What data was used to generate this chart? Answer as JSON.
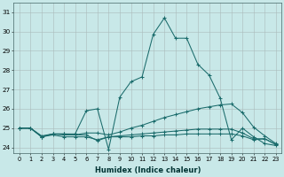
{
  "xlabel": "Humidex (Indice chaleur)",
  "bg_color": "#c8e8e8",
  "line_color": "#1a6b6b",
  "grid_color": "#aabbbb",
  "ylim": [
    23.7,
    31.5
  ],
  "xlim": [
    -0.5,
    23.5
  ],
  "yticks": [
    24,
    25,
    26,
    27,
    28,
    29,
    30,
    31
  ],
  "xticks": [
    0,
    1,
    2,
    3,
    4,
    5,
    6,
    7,
    8,
    9,
    10,
    11,
    12,
    13,
    14,
    15,
    16,
    17,
    18,
    19,
    20,
    21,
    22,
    23
  ],
  "series1": [
    25.0,
    25.0,
    24.6,
    24.7,
    24.7,
    24.7,
    25.9,
    26.0,
    23.9,
    26.6,
    27.4,
    27.65,
    29.85,
    30.7,
    29.65,
    29.65,
    28.3,
    27.75,
    26.55,
    24.4,
    25.0,
    24.55,
    24.2,
    24.1
  ],
  "series2": [
    25.0,
    25.0,
    24.55,
    24.7,
    24.65,
    24.65,
    24.75,
    24.75,
    24.65,
    24.8,
    25.0,
    25.15,
    25.35,
    25.55,
    25.7,
    25.85,
    26.0,
    26.1,
    26.2,
    26.25,
    25.8,
    25.05,
    24.6,
    24.2
  ],
  "series3": [
    25.0,
    25.0,
    24.55,
    24.65,
    24.55,
    24.55,
    24.55,
    24.4,
    24.55,
    24.55,
    24.55,
    24.6,
    24.6,
    24.65,
    24.65,
    24.7,
    24.7,
    24.7,
    24.7,
    24.7,
    24.6,
    24.4,
    24.45,
    24.15
  ],
  "series4": [
    25.0,
    25.0,
    24.55,
    24.7,
    24.7,
    24.65,
    24.65,
    24.35,
    24.55,
    24.6,
    24.65,
    24.7,
    24.75,
    24.8,
    24.85,
    24.9,
    24.95,
    24.95,
    24.95,
    24.95,
    24.75,
    24.45,
    24.45,
    24.15
  ]
}
